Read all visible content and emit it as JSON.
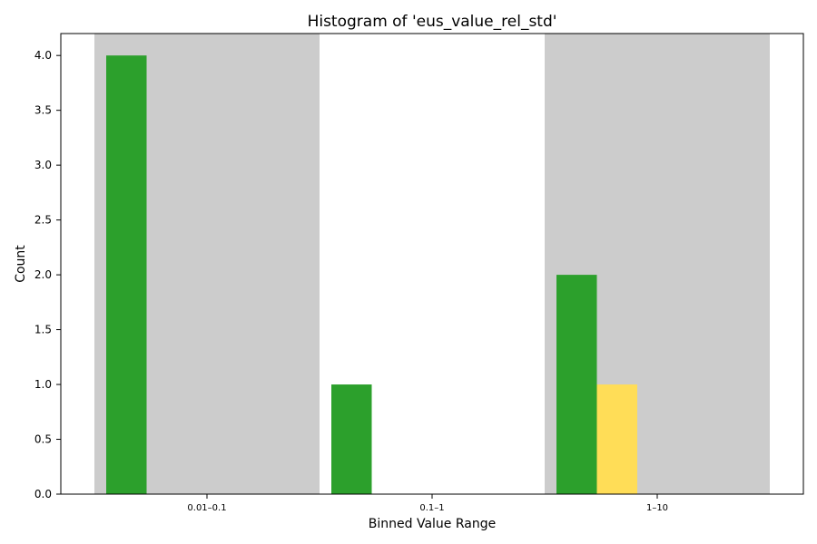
{
  "chart_data": {
    "type": "bar",
    "title": "Histogram of 'eus_value_rel_std'",
    "xlabel": "Binned Value Range",
    "ylabel": "Count",
    "categories": [
      "0.01–0.1",
      "0.1–1",
      "1–10"
    ],
    "shaded_categories": [
      "0.01–0.1",
      "1–10"
    ],
    "series": [
      {
        "values": [
          4,
          1,
          2
        ],
        "color": "#2ca02c"
      },
      {
        "values": [
          0,
          0,
          1
        ],
        "color": "#ffdd57"
      }
    ],
    "ylim": [
      0,
      4.2
    ],
    "yticks": [
      "0.0",
      "0.5",
      "1.0",
      "1.5",
      "2.0",
      "2.5",
      "3.0",
      "3.5",
      "4.0"
    ],
    "grid": false,
    "shade_color": "#cccccc"
  }
}
